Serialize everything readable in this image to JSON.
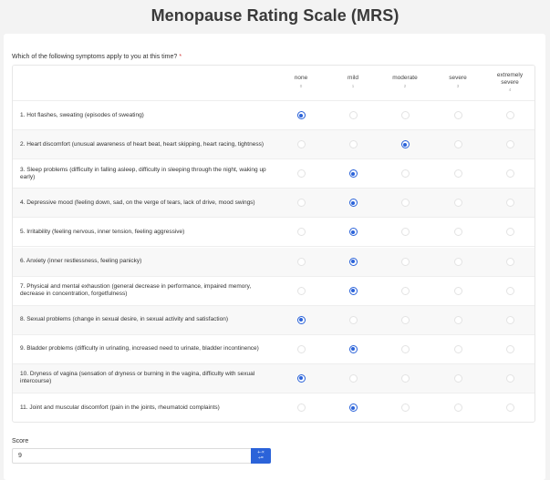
{
  "page": {
    "title": "Menopause Rating Scale (MRS)"
  },
  "question": {
    "text": "Which of the following symptoms apply to you at this time?",
    "required_mark": "*"
  },
  "columns": [
    {
      "label": "none",
      "value": "0"
    },
    {
      "label": "mild",
      "value": "1"
    },
    {
      "label": "moderate",
      "value": "2"
    },
    {
      "label": "severe",
      "value": "3"
    },
    {
      "label": "extremely severe",
      "value": "4"
    }
  ],
  "rows": [
    {
      "label": "1. Hot flashes, sweating (episodes of sweating)",
      "selected": 0
    },
    {
      "label": "2. Heart discomfort (unusual awareness of heart beat, heart skipping, heart racing, tightness)",
      "selected": 2
    },
    {
      "label": "3. Sleep problems (difficulty in falling asleep, difficulty in sleeping through the night, waking up early)",
      "selected": 1
    },
    {
      "label": "4. Depressive mood (feeling down, sad, on the verge of tears, lack of drive, mood swings)",
      "selected": 1
    },
    {
      "label": "5. Irritability (feeling nervous, inner tension, feeling aggressive)",
      "selected": 1
    },
    {
      "label": "6. Anxiety (inner restlessness, feeling panicky)",
      "selected": 1
    },
    {
      "label": "7. Physical and mental exhaustion (general decrease in performance, impaired memory, decrease in concentration, forgetfulness)",
      "selected": 1
    },
    {
      "label": "8. Sexual problems (change in sexual desire, in sexual activity and satisfaction)",
      "selected": 0
    },
    {
      "label": "9. Bladder problems (difficulty in urinating, increased need to urinate, bladder incontinence)",
      "selected": 1
    },
    {
      "label": "10. Dryness of vagina (sensation of dryness or burning in the vagina, difficulty with sexual intercourse)",
      "selected": 0
    },
    {
      "label": "11. Joint and muscular discomfort (pain in the joints, rheumatoid complaints)",
      "selected": 1
    }
  ],
  "score": {
    "label": "Score",
    "value": "9",
    "button_top": "+-×",
    "button_bottom": "÷="
  },
  "colors": {
    "accent": "#2b63d9"
  }
}
